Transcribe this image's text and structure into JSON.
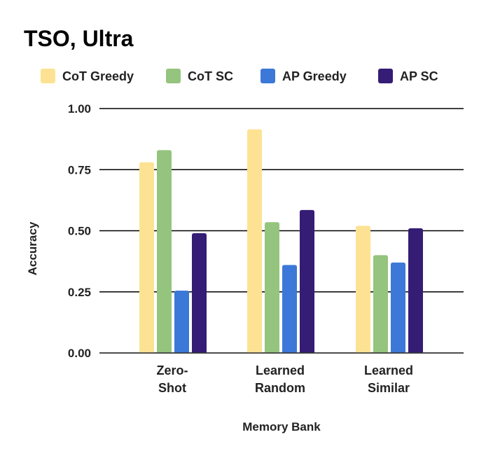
{
  "chart_data": {
    "type": "bar",
    "title": "TSO, Ultra",
    "xlabel": "Memory Bank",
    "ylabel": "Accuracy",
    "ylim": [
      0,
      1
    ],
    "yticks": [
      "0.00",
      "0.25",
      "0.50",
      "0.75",
      "1.00"
    ],
    "ytick_values": [
      0,
      0.25,
      0.5,
      0.75,
      1.0
    ],
    "grid": true,
    "legend_position": "top",
    "categories": [
      [
        "Zero-",
        "Shot"
      ],
      [
        "Learned",
        "Random"
      ],
      [
        "Learned",
        "Similar"
      ]
    ],
    "series": [
      {
        "name": "CoT Greedy",
        "color": "#fde293",
        "values": [
          0.78,
          0.915,
          0.52
        ]
      },
      {
        "name": "CoT SC",
        "color": "#94c47d",
        "values": [
          0.83,
          0.535,
          0.4
        ]
      },
      {
        "name": "AP Greedy",
        "color": "#3c78d8",
        "values": [
          0.255,
          0.36,
          0.37
        ]
      },
      {
        "name": "AP SC",
        "color": "#351c75",
        "values": [
          0.49,
          0.585,
          0.51
        ]
      }
    ]
  }
}
